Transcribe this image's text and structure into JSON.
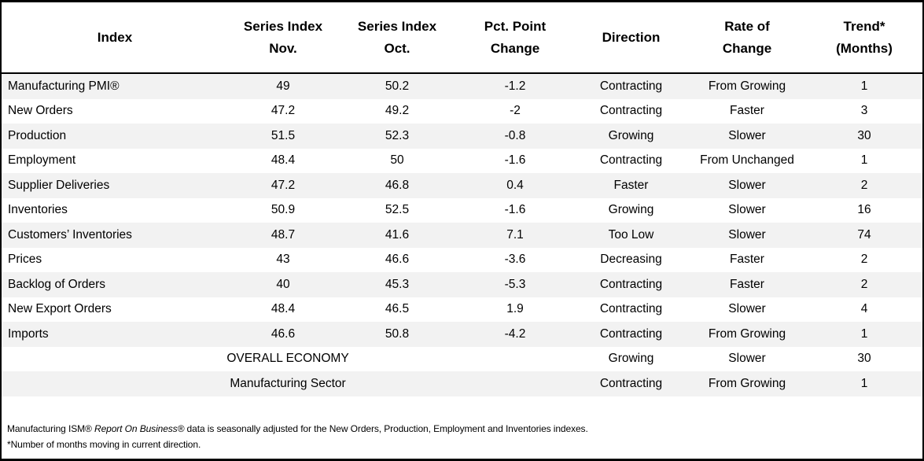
{
  "colors": {
    "border": "#000000",
    "text": "#000000",
    "background": "#ffffff",
    "row_alt": "#f2f2f2"
  },
  "header": {
    "lines": [
      [
        "Index"
      ],
      [
        "Series Index",
        "Nov."
      ],
      [
        "Series Index",
        "Oct."
      ],
      [
        "Pct. Point",
        "Change"
      ],
      [
        "Direction"
      ],
      [
        "Rate of",
        "Change"
      ],
      [
        "Trend*",
        "(Months)"
      ]
    ]
  },
  "chart_data": {
    "type": "table",
    "columns": [
      "Index",
      "Series Index Nov.",
      "Series Index Oct.",
      "Pct. Point Change",
      "Direction",
      "Rate of Change",
      "Trend* (Months)"
    ],
    "rows": [
      [
        "Manufacturing PMI®",
        "49",
        "50.2",
        "-1.2",
        "Contracting",
        "From Growing",
        "1"
      ],
      [
        "New Orders",
        "47.2",
        "49.2",
        "-2",
        "Contracting",
        "Faster",
        "3"
      ],
      [
        "Production",
        "51.5",
        "52.3",
        "-0.8",
        "Growing",
        "Slower",
        "30"
      ],
      [
        "Employment",
        "48.4",
        "50",
        "-1.6",
        "Contracting",
        "From Unchanged",
        "1"
      ],
      [
        "Supplier Deliveries",
        "47.2",
        "46.8",
        "0.4",
        "Faster",
        "Slower",
        "2"
      ],
      [
        "Inventories",
        "50.9",
        "52.5",
        "-1.6",
        "Growing",
        "Slower",
        "16"
      ],
      [
        "Customers’ Inventories",
        "48.7",
        "41.6",
        "7.1",
        "Too Low",
        "Slower",
        "74"
      ],
      [
        "Prices",
        "43",
        "46.6",
        "-3.6",
        "Decreasing",
        "Faster",
        "2"
      ],
      [
        "Backlog of Orders",
        "40",
        "45.3",
        "-5.3",
        "Contracting",
        "Faster",
        "2"
      ],
      [
        "New Export Orders",
        "48.4",
        "46.5",
        "1.9",
        "Contracting",
        "Slower",
        "4"
      ],
      [
        "Imports",
        "46.6",
        "50.8",
        "-4.2",
        "Contracting",
        "From Growing",
        "1"
      ]
    ],
    "summary_rows": [
      [
        "OVERALL ECONOMY",
        "Growing",
        "Slower",
        "30"
      ],
      [
        "Manufacturing Sector",
        "Contracting",
        "From Growing",
        "1"
      ]
    ]
  },
  "footnotes": {
    "note1_part1": "Manufacturing ISM® ",
    "note1_part2_italic": "Report On Business®",
    "note1_part3": "  data is seasonally adjusted for the New Orders, Production, Employment and Inventories indexes.",
    "note2": "*Number of months moving in current direction."
  }
}
